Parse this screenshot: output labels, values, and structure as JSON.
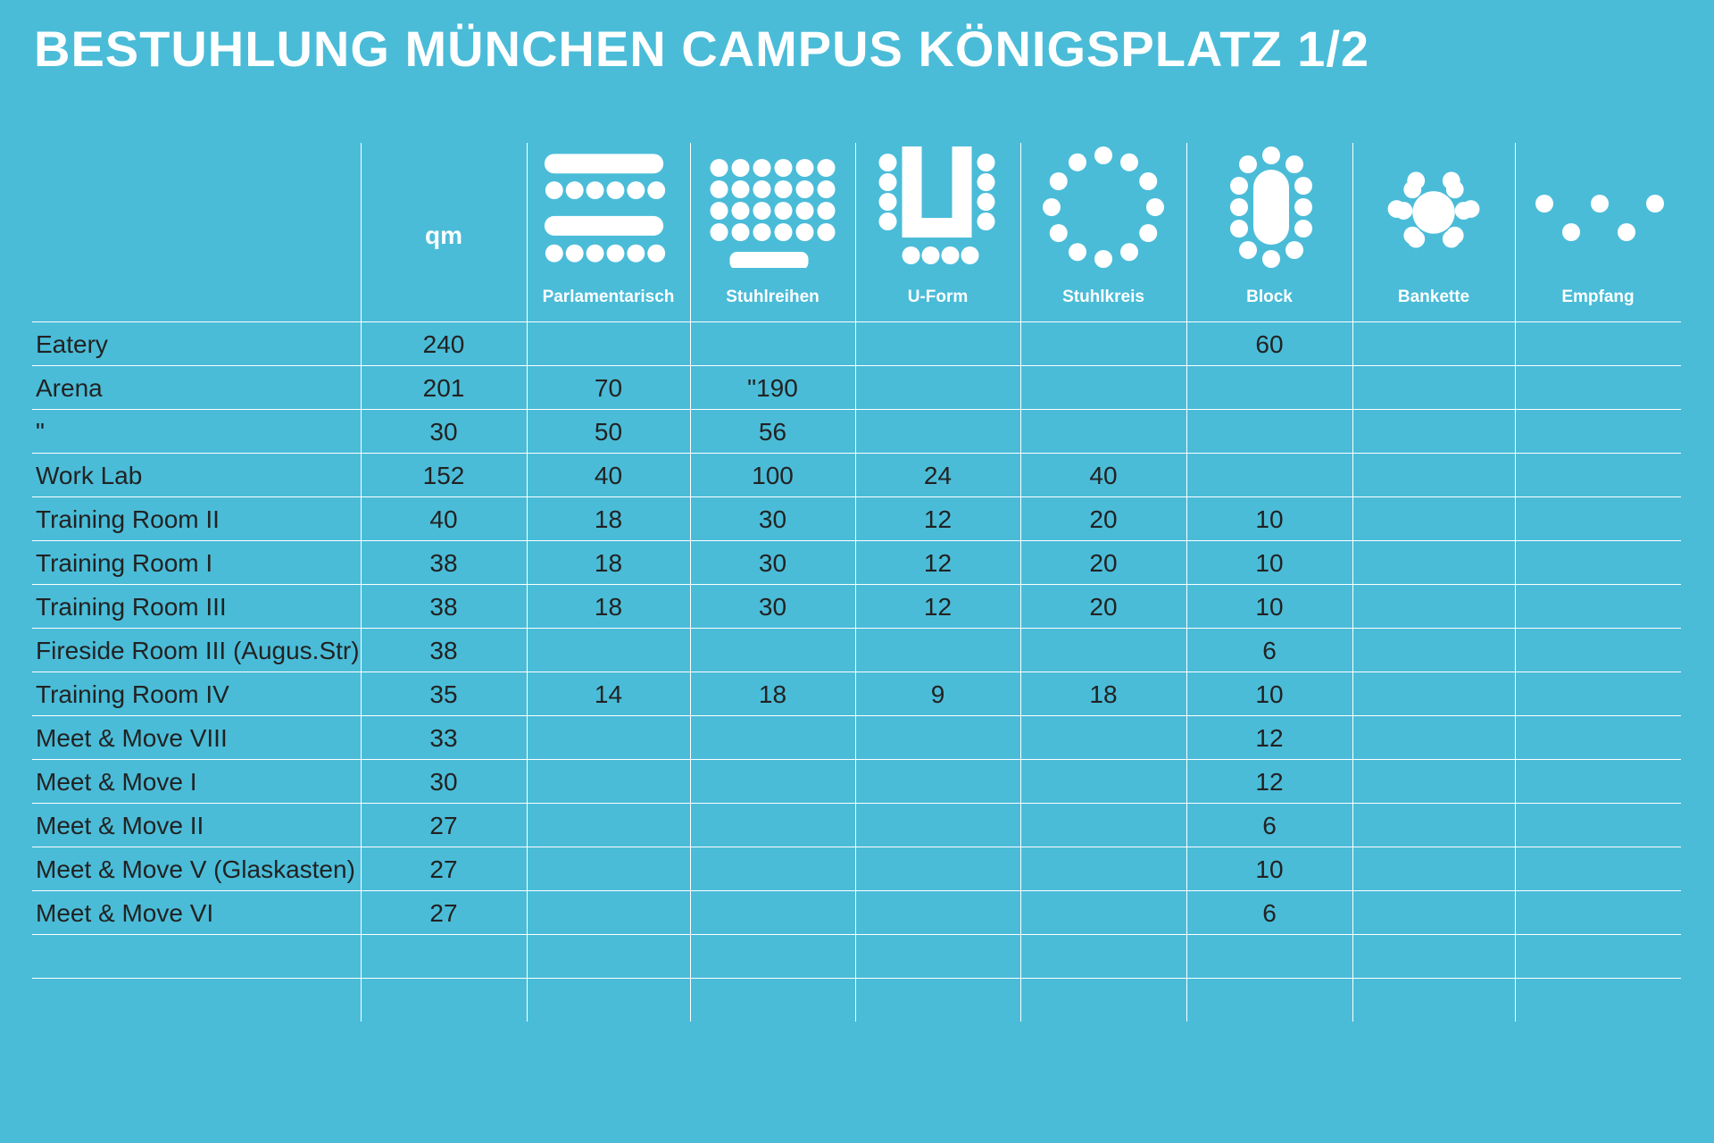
{
  "title": "BESTUHLUNG MÜNCHEN CAMPUS KÖNIGSPLATZ 1/2",
  "colors": {
    "background": "#4abcd8",
    "lines": "#ffffff",
    "text": "#222222"
  },
  "table": {
    "columns": [
      {
        "key": "qm",
        "label": "qm",
        "icon": null
      },
      {
        "key": "parlamentarisch",
        "label": "Parlamentarisch",
        "icon": "parlamentarisch-icon"
      },
      {
        "key": "stuhlreihen",
        "label": "Stuhlreihen",
        "icon": "stuhlreihen-icon"
      },
      {
        "key": "uform",
        "label": "U-Form",
        "icon": "u-form-icon"
      },
      {
        "key": "stuhlkreis",
        "label": "Stuhlkreis",
        "icon": "stuhlkreis-icon"
      },
      {
        "key": "block",
        "label": "Block",
        "icon": "block-icon"
      },
      {
        "key": "bankette",
        "label": "Bankette",
        "icon": "bankette-icon"
      },
      {
        "key": "empfang",
        "label": "Empfang",
        "icon": "empfang-icon"
      }
    ],
    "rows": [
      {
        "name": "Eatery",
        "values": [
          "240",
          "",
          "",
          "",
          "",
          "60",
          "",
          ""
        ]
      },
      {
        "name": "Arena",
        "values": [
          "201",
          "70",
          "\"190",
          "",
          "",
          "",
          "",
          ""
        ]
      },
      {
        "name": "\"",
        "values": [
          "30",
          "50",
          "56",
          "",
          "",
          "",
          "",
          ""
        ]
      },
      {
        "name": "Work Lab",
        "values": [
          "152",
          "40",
          "100",
          "24",
          "40",
          "",
          "",
          ""
        ]
      },
      {
        "name": "Training Room II",
        "values": [
          "40",
          "18",
          "30",
          "12",
          "20",
          "10",
          "",
          ""
        ]
      },
      {
        "name": "Training Room I",
        "values": [
          "38",
          "18",
          "30",
          "12",
          "20",
          "10",
          "",
          ""
        ]
      },
      {
        "name": "Training Room III",
        "values": [
          "38",
          "18",
          "30",
          "12",
          "20",
          "10",
          "",
          ""
        ]
      },
      {
        "name": "Fireside Room III (Augus.Str)",
        "values": [
          "38",
          "",
          "",
          "",
          "",
          "6",
          "",
          ""
        ]
      },
      {
        "name": "Training Room IV",
        "values": [
          "35",
          "14",
          "18",
          "9",
          "18",
          "10",
          "",
          ""
        ]
      },
      {
        "name": "Meet & Move VIII",
        "values": [
          "33",
          "",
          "",
          "",
          "",
          "12",
          "",
          ""
        ]
      },
      {
        "name": "Meet & Move I",
        "values": [
          "30",
          "",
          "",
          "",
          "",
          "12",
          "",
          ""
        ]
      },
      {
        "name": "Meet & Move II",
        "values": [
          "27",
          "",
          "",
          "",
          "",
          "6",
          "",
          ""
        ]
      },
      {
        "name": "Meet & Move V (Glaskasten)",
        "values": [
          "27",
          "",
          "",
          "",
          "",
          "10",
          "",
          ""
        ]
      },
      {
        "name": "Meet & Move VI",
        "values": [
          "27",
          "",
          "",
          "",
          "",
          "6",
          "",
          ""
        ]
      },
      {
        "name": "",
        "values": [
          "",
          "",
          "",
          "",
          "",
          "",
          "",
          ""
        ]
      }
    ]
  }
}
